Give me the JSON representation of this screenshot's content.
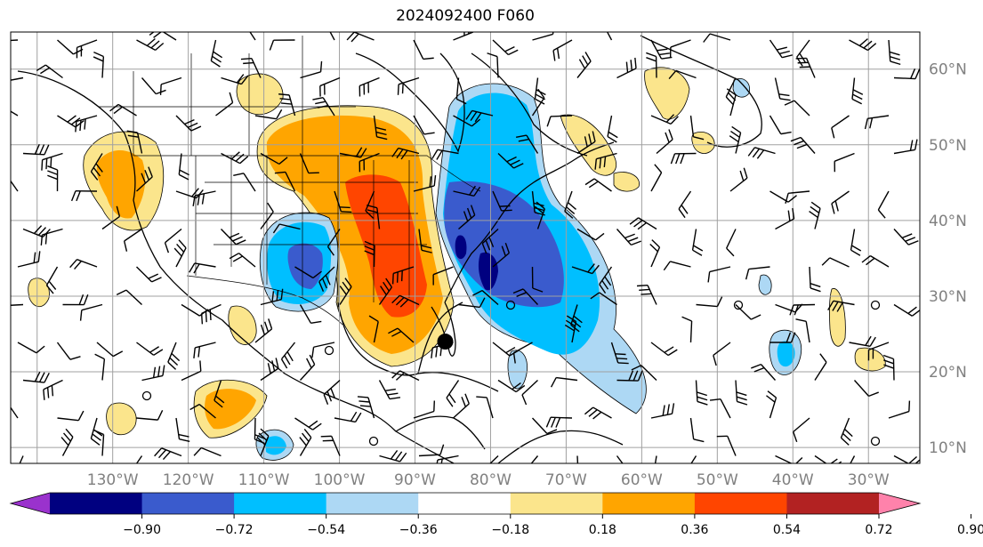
{
  "title": "2024092400 F060",
  "map": {
    "lat_labels": [
      {
        "lat": 60,
        "text": "60°N"
      },
      {
        "lat": 50,
        "text": "50°N"
      },
      {
        "lat": 40,
        "text": "40°N"
      },
      {
        "lat": 30,
        "text": "30°N"
      },
      {
        "lat": 20,
        "text": "20°N"
      },
      {
        "lat": 10,
        "text": "10°N"
      }
    ],
    "lon_labels": [
      {
        "lon": -130,
        "text": "130°W"
      },
      {
        "lon": -120,
        "text": "120°W"
      },
      {
        "lon": -110,
        "text": "110°W"
      },
      {
        "lon": -100,
        "text": "100°W"
      },
      {
        "lon": -90,
        "text": "90°W"
      },
      {
        "lon": -80,
        "text": "80°W"
      },
      {
        "lon": -70,
        "text": "70°W"
      },
      {
        "lon": -60,
        "text": "60°W"
      },
      {
        "lon": -50,
        "text": "50°W"
      },
      {
        "lon": -40,
        "text": "40°W"
      },
      {
        "lon": -30,
        "text": "30°W"
      }
    ],
    "storm_marker": {
      "lon": -86,
      "lat": 24
    }
  },
  "colorbar": {
    "colors": [
      "#9a32cd",
      "#000080",
      "#3a5bcd",
      "#00bfff",
      "#add8f4",
      "#ffffff",
      "#fbe58c",
      "#ffa500",
      "#ff4500",
      "#b22222",
      "#ff82ab"
    ],
    "ticks": [
      "−0.90",
      "−0.72",
      "−0.54",
      "−0.36",
      "−0.18",
      "0.18",
      "0.36",
      "0.54",
      "0.72",
      "0.90"
    ]
  }
}
